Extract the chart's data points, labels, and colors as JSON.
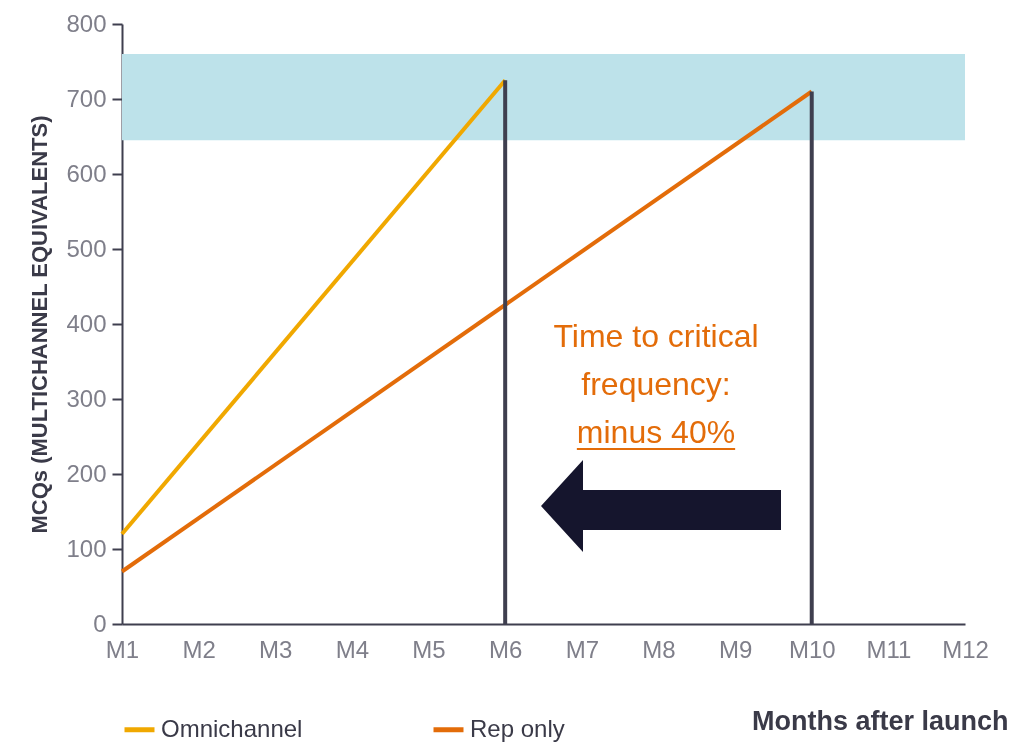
{
  "chart_data": {
    "type": "line",
    "categories": [
      "M1",
      "M2",
      "M3",
      "M4",
      "M5",
      "M6",
      "M7",
      "M8",
      "M9",
      "M10",
      "M11",
      "M12"
    ],
    "series": [
      {
        "name": "Omnichannel",
        "color": "#f0a800",
        "x": [
          "M1",
          "M6"
        ],
        "values": [
          120,
          725
        ]
      },
      {
        "name": "Rep only",
        "color": "#e36c09",
        "x": [
          "M1",
          "M10"
        ],
        "values": [
          70,
          710
        ]
      }
    ],
    "xlabel": "Months after launch",
    "ylabel": "MCQs (MULTICHANNEL EQUIVALENTS)",
    "ylim": [
      0,
      800
    ],
    "yticks": [
      0,
      100,
      200,
      300,
      400,
      500,
      600,
      700,
      800
    ],
    "bands": [
      {
        "axis": "y",
        "from": 645,
        "to": 760,
        "color": "#bde2ea"
      }
    ],
    "ref_lines": [
      {
        "axis": "x",
        "value": "M6",
        "color": "#3f3f4f"
      },
      {
        "axis": "x",
        "value": "M10",
        "color": "#3f3f4f"
      }
    ],
    "annotations": [
      "Time to critical frequency:",
      "minus 40%"
    ],
    "legend": "bottom",
    "grid": false
  }
}
